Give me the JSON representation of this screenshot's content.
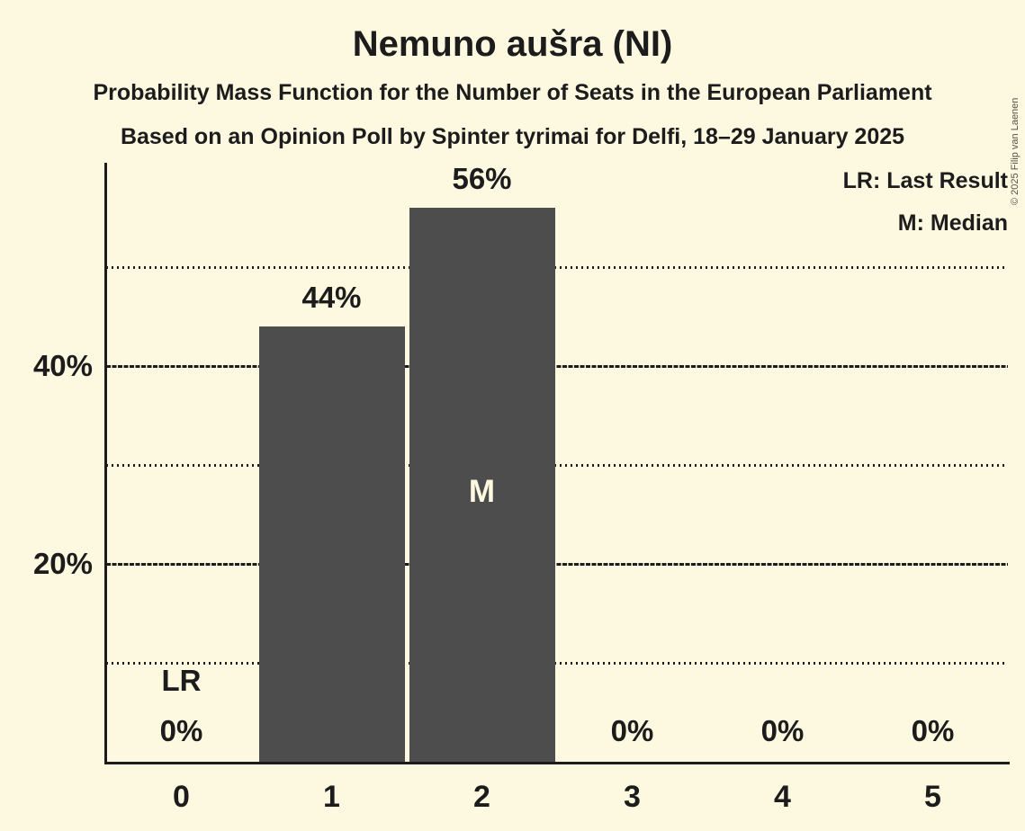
{
  "header": {
    "copyright": "© 2025 Filip van Laenen"
  },
  "chart_data": {
    "type": "bar",
    "title": "Nemuno aušra (NI)",
    "subtitle": "Probability Mass Function for the Number of Seats in the European Parliament",
    "source_line": "Based on an Opinion Poll by Spinter tyrimai for Delfi, 18–29 January 2025",
    "categories": [
      "0",
      "1",
      "2",
      "3",
      "4",
      "5"
    ],
    "values": [
      0,
      44,
      56,
      0,
      0,
      0
    ],
    "value_labels": [
      "0%",
      "44%",
      "56%",
      "0%",
      "0%",
      "0%"
    ],
    "xlabel": "",
    "ylabel": "",
    "ylim": [
      0,
      60.5
    ],
    "yticks": [
      {
        "pct": 20,
        "label": "20%"
      },
      {
        "pct": 40,
        "label": "40%"
      }
    ],
    "gridlines": [
      {
        "pct": 10,
        "style": "dotted"
      },
      {
        "pct": 20,
        "style": "dashed"
      },
      {
        "pct": 30,
        "style": "dotted"
      },
      {
        "pct": 40,
        "style": "dashed"
      },
      {
        "pct": 50,
        "style": "dotted"
      }
    ],
    "legend": [
      "LR: Last Result",
      "M: Median"
    ],
    "legend_position": "top-right",
    "annotations": {
      "last_result": {
        "category_index": 0,
        "label": "LR"
      },
      "median": {
        "category_index": 2,
        "label": "M"
      }
    },
    "colors": {
      "background": "#FDF8E0",
      "bar": "#4D4D4D",
      "ink": "#1C1C1C",
      "inside_bar_label": "#FDF8E0"
    }
  }
}
